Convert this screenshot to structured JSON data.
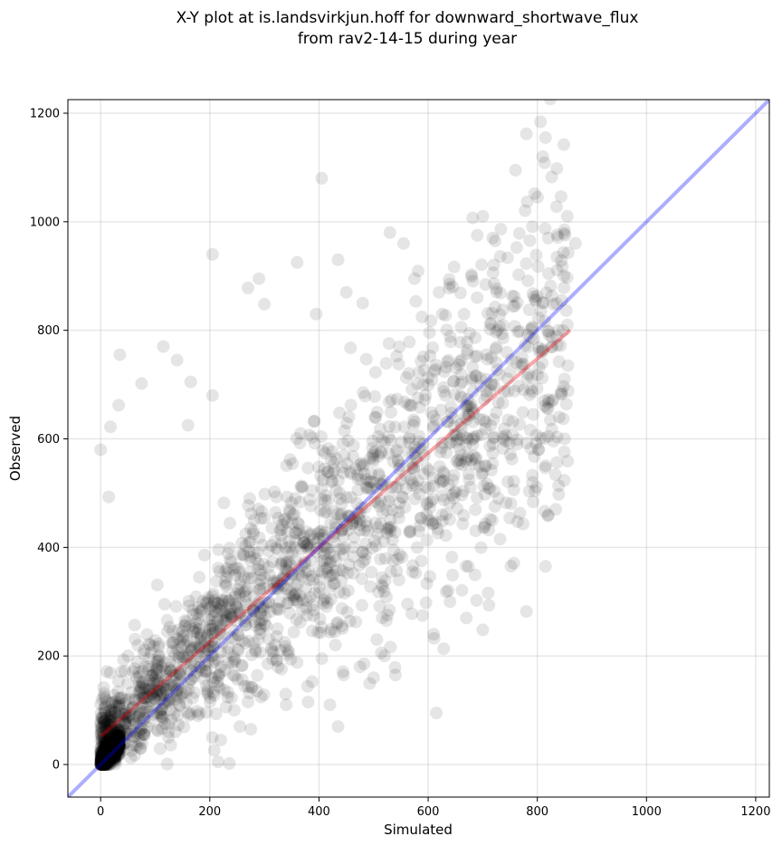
{
  "chart_data": {
    "type": "scatter",
    "title": [
      "X-Y plot at is.landsvirkjun.hoff for downward_shortwave_flux",
      "from rav2-14-15 during year"
    ],
    "xlabel": "Simulated",
    "ylabel": "Observed",
    "xlim": [
      -60,
      1225
    ],
    "ylim": [
      -60,
      1225
    ],
    "xticks": [
      0,
      200,
      400,
      600,
      800,
      1000,
      1200
    ],
    "yticks": [
      0,
      200,
      400,
      600,
      800,
      1000,
      1200
    ],
    "xtick_labels": [
      "0",
      "200",
      "400",
      "600",
      "800",
      "1000",
      "1200"
    ],
    "ytick_labels": [
      "0",
      "200",
      "400",
      "600",
      "800",
      "1000",
      "1200"
    ],
    "grid": true,
    "point_color": "#000000",
    "point_alpha": 0.1,
    "outliers": [
      [
        0,
        580
      ],
      [
        18,
        622
      ],
      [
        15,
        493
      ],
      [
        35,
        755
      ],
      [
        33,
        662
      ],
      [
        75,
        702
      ],
      [
        115,
        770
      ],
      [
        140,
        745
      ],
      [
        160,
        625
      ],
      [
        165,
        705
      ],
      [
        205,
        680
      ],
      [
        205,
        940
      ],
      [
        270,
        878
      ],
      [
        290,
        895
      ],
      [
        300,
        848
      ],
      [
        360,
        925
      ],
      [
        405,
        1080
      ],
      [
        395,
        830
      ],
      [
        435,
        930
      ],
      [
        450,
        870
      ],
      [
        480,
        850
      ],
      [
        530,
        980
      ],
      [
        555,
        960
      ],
      [
        575,
        895
      ],
      [
        620,
        870
      ],
      [
        645,
        880
      ],
      [
        700,
        1010
      ],
      [
        690,
        975
      ],
      [
        760,
        1095
      ],
      [
        780,
        1162
      ],
      [
        815,
        1155
      ],
      [
        810,
        1120
      ],
      [
        795,
        1052
      ],
      [
        855,
        1010
      ],
      [
        850,
        985
      ],
      [
        820,
        970
      ],
      [
        870,
        960
      ],
      [
        845,
        855
      ],
      [
        855,
        810
      ],
      [
        840,
        640
      ],
      [
        850,
        600
      ],
      [
        820,
        460
      ],
      [
        815,
        365
      ],
      [
        780,
        282
      ],
      [
        700,
        248
      ],
      [
        670,
        270
      ],
      [
        640,
        300
      ],
      [
        610,
        240
      ],
      [
        615,
        95
      ],
      [
        540,
        165
      ],
      [
        500,
        160
      ],
      [
        475,
        180
      ],
      [
        445,
        165
      ],
      [
        435,
        70
      ],
      [
        420,
        110
      ],
      [
        380,
        115
      ],
      [
        340,
        110
      ],
      [
        275,
        65
      ],
      [
        255,
        70
      ],
      [
        220,
        45
      ],
      [
        215,
        5
      ],
      [
        245,
        100
      ],
      [
        330,
        210
      ],
      [
        430,
        220
      ],
      [
        520,
        200
      ],
      [
        580,
        400
      ],
      [
        660,
        560
      ]
    ],
    "series": [
      {
        "name": "",
        "kind": "fit",
        "x": [
          0,
          860
        ],
        "y": [
          52,
          800
        ],
        "color": "#e8000b",
        "alpha": 0.35
      },
      {
        "name": "",
        "kind": "identity",
        "x": [
          -60,
          1225
        ],
        "y": [
          -60,
          1225
        ],
        "color": "#0000ff",
        "alpha": 0.32
      }
    ]
  }
}
